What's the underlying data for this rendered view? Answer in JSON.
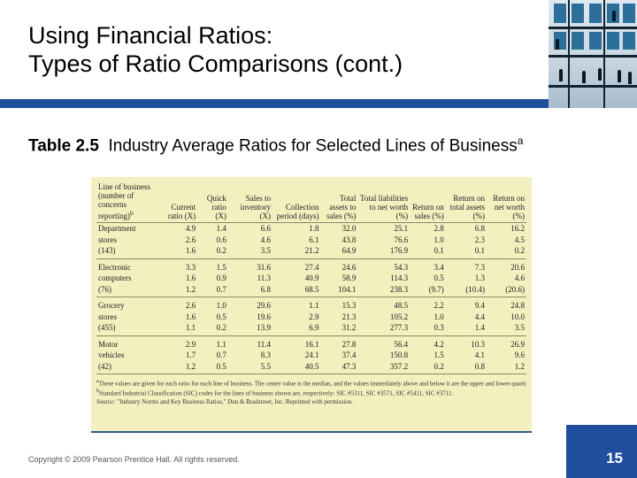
{
  "slide": {
    "title_line1": "Using Financial Ratios:",
    "title_line2": "Types of Ratio Comparisons (cont.)",
    "subtitle_bold": "Table 2.5",
    "subtitle_text": "Industry Average Ratios for Selected Lines of Business",
    "subtitle_sup": "a",
    "footer": "Copyright © 2009 Pearson Prentice Hall. All rights reserved.",
    "page_number": "15"
  },
  "colors": {
    "accent_blue": "#1f4e9c",
    "table_bg": "#f4efbf"
  },
  "photo": {
    "icon": "office-building-people-photo"
  },
  "table": {
    "headers": [
      "Line of business (number of concerns reporting)",
      "Current ratio (X)",
      "Quick ratio (X)",
      "Sales to inventory (X)",
      "Collection period (days)",
      "Total assets to sales (%)",
      "Total liabilities to net worth (%)",
      "Return on sales (%)",
      "Return on total assets (%)",
      "Return on net worth (%)"
    ],
    "header_sup": "b",
    "groups": [
      {
        "rows": [
          [
            "Department",
            "4.9",
            "1.4",
            "6.6",
            "1.8",
            "32.0",
            "25.1",
            "2.8",
            "6.8",
            "16.2"
          ],
          [
            "stores",
            "2.6",
            "0.6",
            "4.6",
            "6.1",
            "43.8",
            "76.6",
            "1.0",
            "2.3",
            "4.5"
          ],
          [
            "(143)",
            "1.6",
            "0.2",
            "3.5",
            "21.2",
            "64.9",
            "176.9",
            "0.1",
            "0.1",
            "0.2"
          ]
        ]
      },
      {
        "rows": [
          [
            "Electronic",
            "3.3",
            "1.5",
            "31.6",
            "27.4",
            "24.6",
            "54.3",
            "3.4",
            "7.3",
            "20.6"
          ],
          [
            "computers",
            "1.6",
            "0.9",
            "11.3",
            "40.9",
            "58.9",
            "114.3",
            "0.5",
            "1.3",
            "4.6"
          ],
          [
            "(76)",
            "1.2",
            "0.7",
            "6.8",
            "68.5",
            "104.1",
            "238.3",
            "(9.7)",
            "(10.4)",
            "(20.6)"
          ]
        ]
      },
      {
        "rows": [
          [
            "Grocery",
            "2.6",
            "1.0",
            "29.6",
            "1.1",
            "15.3",
            "48.5",
            "2.2",
            "9.4",
            "24.8"
          ],
          [
            "stores",
            "1.6",
            "0.5",
            "19.6",
            "2.9",
            "21.3",
            "105.2",
            "1.0",
            "4.4",
            "10.0"
          ],
          [
            "(455)",
            "1.1",
            "0.2",
            "13.9",
            "6.9",
            "31.2",
            "277.3",
            "0.3",
            "1.4",
            "3.5"
          ]
        ]
      },
      {
        "rows": [
          [
            "Motor",
            "2.9",
            "1.1",
            "11.4",
            "16.1",
            "27.8",
            "56.4",
            "4.2",
            "10.3",
            "26.9"
          ],
          [
            "vehicles",
            "1.7",
            "0.7",
            "8.3",
            "24.1",
            "37.4",
            "150.8",
            "1.5",
            "4.1",
            "9.6"
          ],
          [
            "(42)",
            "1.2",
            "0.5",
            "5.5",
            "40.5",
            "47.3",
            "357.2",
            "0.2",
            "0.8",
            "1.2"
          ]
        ]
      }
    ],
    "notes": {
      "a": "These values are given for each ratio for each line of business. The center value is the median, and the values immediately above and below it are the upper and lower quartiles, respectively.",
      "b": "Standard Industrial Classification (SIC) codes for the lines of business shown are, respectively: SIC #5311, SIC #3571, SIC #5411, SIC #3711.",
      "source_label": "Source:",
      "source": "\"Industry Norms and Key Business Ratios,\" Dun & Bradstreet, Inc. Reprinted with permission."
    }
  }
}
